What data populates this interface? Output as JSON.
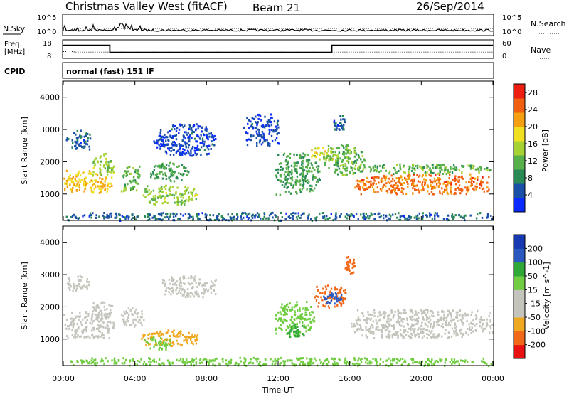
{
  "header": {
    "station": "Christmas Valley West (fitACF)",
    "beam": "Beam 21",
    "date": "26/Sep/2014"
  },
  "strip_labels": {
    "nsky": "N.Sky",
    "nsky_ticks": [
      "10^5",
      "10^0"
    ],
    "nsearch": "N.Search",
    "nsearch_ticks": [
      "10^5",
      "10^0"
    ],
    "freq": "Freq.",
    "freq_unit": "[MHz]",
    "freq_ticks": [
      "18",
      "8"
    ],
    "nave": "Nave",
    "nave_ticks": [
      "60",
      "0"
    ],
    "cpid": "CPID",
    "cpid_value": "normal (fast) 151 IF"
  },
  "colors": {
    "power": [
      "#0a2aff",
      "#1a4fa8",
      "#2a8a55",
      "#57b04a",
      "#a6d233",
      "#f0e020",
      "#f5a010",
      "#f06010",
      "#ee1f10"
    ],
    "velocity": [
      "#e81010",
      "#f06818",
      "#f0a820",
      "#c4c4bc",
      "#c4c4bc",
      "#70cc40",
      "#30a838",
      "#2858c0",
      "#1638b0"
    ]
  },
  "chart_data": [
    {
      "type": "heatmap",
      "name": "power-panel",
      "ylabel": "Slant Range [km]",
      "yticks": [
        1000,
        2000,
        3000,
        4000
      ],
      "ylim": [
        180,
        4500
      ],
      "colorbar_label": "Power [dB]",
      "colorbar_ticks": [
        4,
        8,
        12,
        16,
        20,
        24,
        28
      ],
      "clim": [
        0,
        30
      ],
      "clusters": [
        {
          "t": [
            0.0,
            2.8
          ],
          "r": [
            1050,
            1750
          ],
          "v": 20
        },
        {
          "t": [
            1.6,
            2.8
          ],
          "r": [
            1600,
            2300
          ],
          "v": 14
        },
        {
          "t": [
            0.1,
            1.5
          ],
          "r": [
            2400,
            3000
          ],
          "v": 6
        },
        {
          "t": [
            3.2,
            4.3
          ],
          "r": [
            1100,
            1900
          ],
          "v": 12
        },
        {
          "t": [
            4.3,
            7.5
          ],
          "r": [
            700,
            1300
          ],
          "v": 14
        },
        {
          "t": [
            4.8,
            7.0
          ],
          "r": [
            1400,
            2000
          ],
          "v": 10
        },
        {
          "t": [
            5.0,
            8.5
          ],
          "r": [
            2200,
            3200
          ],
          "v": 4
        },
        {
          "t": [
            10.0,
            12.0
          ],
          "r": [
            2500,
            3500
          ],
          "v": 4
        },
        {
          "t": [
            11.8,
            14.3
          ],
          "r": [
            1000,
            2300
          ],
          "v": 10
        },
        {
          "t": [
            13.8,
            15.0
          ],
          "r": [
            2100,
            2500
          ],
          "v": 18
        },
        {
          "t": [
            14.5,
            16.8
          ],
          "r": [
            1600,
            2600
          ],
          "v": 12
        },
        {
          "t": [
            15.0,
            15.7
          ],
          "r": [
            3000,
            3500
          ],
          "v": 6
        },
        {
          "t": [
            16.0,
            24.0
          ],
          "r": [
            1000,
            1650
          ],
          "v": 24
        },
        {
          "t": [
            16.0,
            24.0
          ],
          "r": [
            1650,
            1950
          ],
          "v": 12
        },
        {
          "t": [
            0.0,
            24.0
          ],
          "r": [
            200,
            450
          ],
          "v": 6
        }
      ]
    },
    {
      "type": "heatmap",
      "name": "velocity-panel",
      "ylabel": "Slant Range [km]",
      "yticks": [
        1000,
        2000,
        3000,
        4000
      ],
      "ylim": [
        180,
        4500
      ],
      "colorbar_label": "Velocity [m s^-1]",
      "colorbar_ticks": [
        -200,
        -100,
        -50,
        -15,
        15,
        50,
        100,
        200
      ],
      "clusters": [
        {
          "t": [
            0.0,
            2.8
          ],
          "r": [
            1050,
            1900
          ],
          "v": 0
        },
        {
          "t": [
            1.6,
            2.8
          ],
          "r": [
            1700,
            2200
          ],
          "v": 0
        },
        {
          "t": [
            0.1,
            1.5
          ],
          "r": [
            2500,
            3000
          ],
          "v": 0
        },
        {
          "t": [
            3.2,
            4.5
          ],
          "r": [
            1400,
            2000
          ],
          "v": -40
        },
        {
          "t": [
            4.3,
            7.5
          ],
          "r": [
            800,
            1300
          ],
          "v": -80
        },
        {
          "t": [
            4.5,
            6.0
          ],
          "r": [
            700,
            1100
          ],
          "v": 40
        },
        {
          "t": [
            5.5,
            8.5
          ],
          "r": [
            2300,
            3000
          ],
          "v": 0
        },
        {
          "t": [
            11.8,
            14.0
          ],
          "r": [
            1100,
            2200
          ],
          "v": 40
        },
        {
          "t": [
            12.5,
            13.5
          ],
          "r": [
            1100,
            1500
          ],
          "v": 70
        },
        {
          "t": [
            14.0,
            15.8
          ],
          "r": [
            2000,
            2700
          ],
          "v": -120
        },
        {
          "t": [
            14.5,
            15.5
          ],
          "r": [
            2100,
            2500
          ],
          "v": 150
        },
        {
          "t": [
            15.7,
            16.3
          ],
          "r": [
            3000,
            3600
          ],
          "v": -150
        },
        {
          "t": [
            16.0,
            24.0
          ],
          "r": [
            1050,
            1950
          ],
          "v": 0
        },
        {
          "t": [
            0.0,
            24.0
          ],
          "r": [
            200,
            450
          ],
          "v": 40
        }
      ]
    }
  ],
  "time_axis": {
    "label": "Time UT",
    "ticks": [
      "00:00",
      "04:00",
      "08:00",
      "12:00",
      "16:00",
      "20:00",
      "00:00"
    ],
    "range_hours": [
      0,
      24
    ]
  },
  "freq_series": {
    "t": [
      0,
      2.6,
      2.6,
      15.0,
      15.0,
      24
    ],
    "v": [
      16,
      16,
      10.4,
      10.4,
      16,
      16
    ]
  },
  "nave_series": {
    "t": [
      0,
      0.6,
      0.6,
      24
    ],
    "v": [
      18,
      18,
      16,
      16
    ]
  }
}
